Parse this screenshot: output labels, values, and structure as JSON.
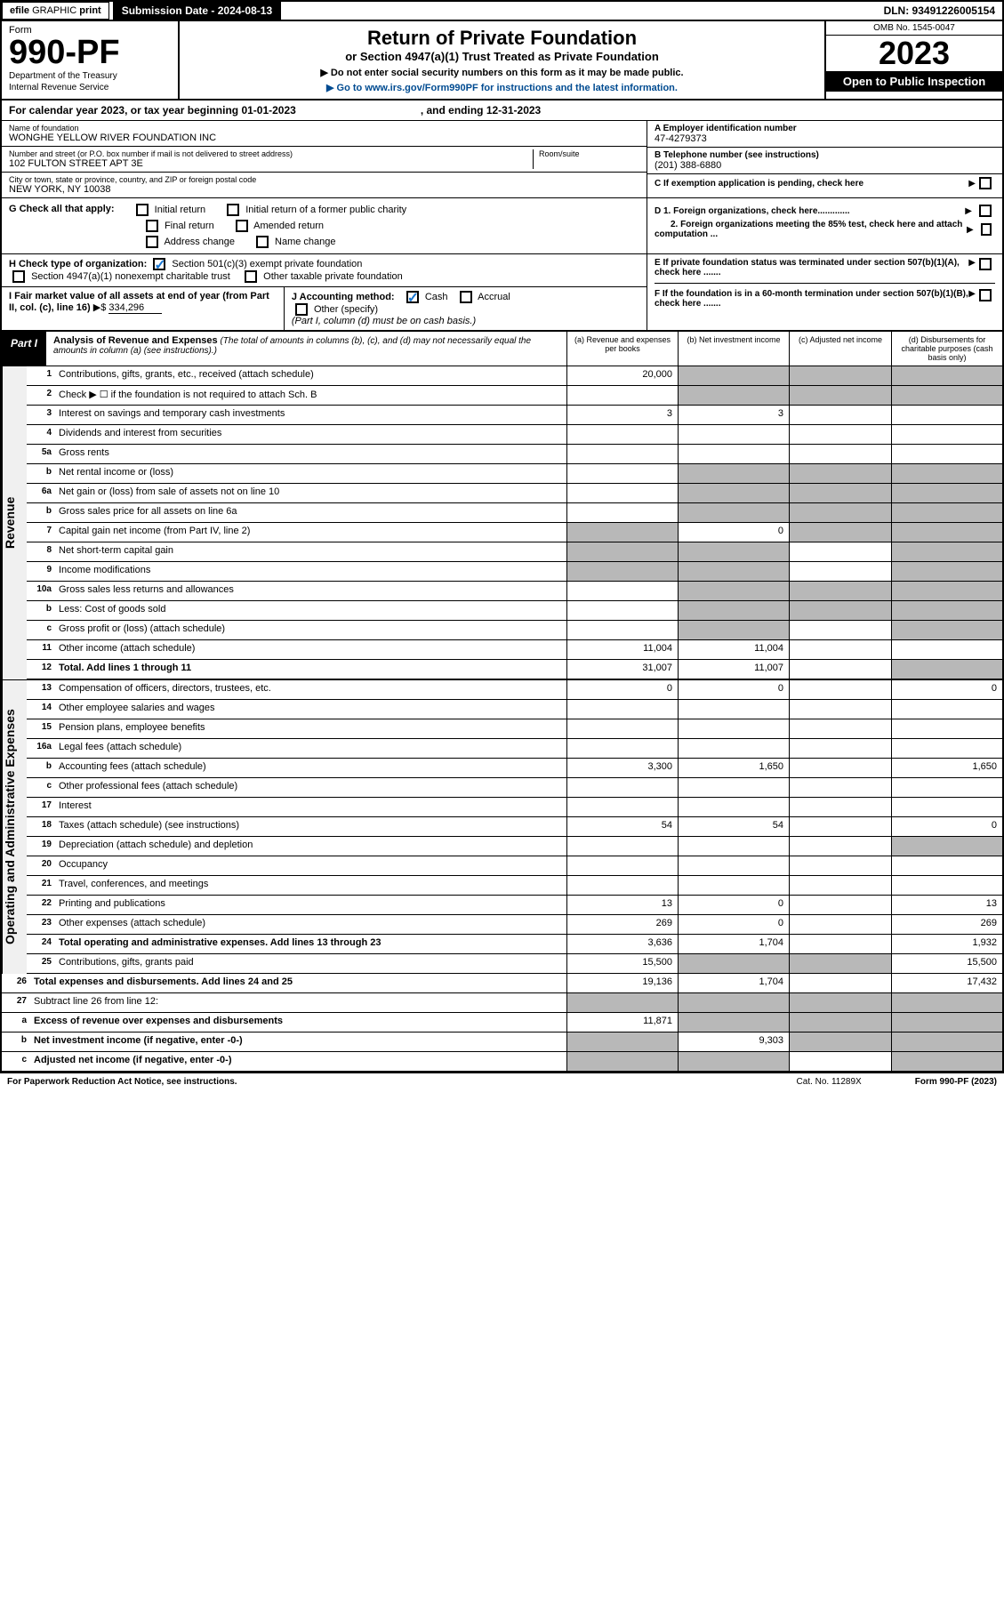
{
  "topbar": {
    "efile": "efile",
    "graphic": "GRAPHIC",
    "print": "print",
    "submission": "Submission Date - 2024-08-13",
    "dln": "DLN: 93491226005154"
  },
  "header": {
    "form": "Form",
    "formNum": "990-PF",
    "dept": "Department of the Treasury",
    "irs": "Internal Revenue Service",
    "title": "Return of Private Foundation",
    "subtitle": "or Section 4947(a)(1) Trust Treated as Private Foundation",
    "instr1": "▶ Do not enter social security numbers on this form as it may be made public.",
    "instr2": "▶ Go to www.irs.gov/Form990PF for instructions and the latest information.",
    "omb": "OMB No. 1545-0047",
    "year": "2023",
    "openPub": "Open to Public Inspection"
  },
  "calYear": {
    "prefix": "For calendar year 2023, or tax year beginning 01-01-2023",
    "suffix": ", and ending 12-31-2023"
  },
  "info": {
    "nameLbl": "Name of foundation",
    "name": "WONGHE YELLOW RIVER FOUNDATION INC",
    "addrLbl": "Number and street (or P.O. box number if mail is not delivered to street address)",
    "addr": "102 FULTON STREET APT 3E",
    "roomLbl": "Room/suite",
    "cityLbl": "City or town, state or province, country, and ZIP or foreign postal code",
    "city": "NEW YORK, NY  10038",
    "einLbl": "A Employer identification number",
    "ein": "47-4279373",
    "phoneLbl": "B Telephone number (see instructions)",
    "phone": "(201) 388-6880",
    "cLbl": "C If exemption application is pending, check here",
    "d1": "D 1. Foreign organizations, check here.............",
    "d2": "2. Foreign organizations meeting the 85% test, check here and attach computation ...",
    "e": "E  If private foundation status was terminated under section 507(b)(1)(A), check here .......",
    "f": "F  If the foundation is in a 60-month termination under section 507(b)(1)(B), check here ......."
  },
  "g": {
    "label": "G Check all that apply:",
    "initial": "Initial return",
    "initialFormer": "Initial return of a former public charity",
    "final": "Final return",
    "amended": "Amended return",
    "addrChange": "Address change",
    "nameChange": "Name change"
  },
  "h": {
    "label": "H Check type of organization:",
    "sec501": "Section 501(c)(3) exempt private foundation",
    "sec4947": "Section 4947(a)(1) nonexempt charitable trust",
    "other": "Other taxable private foundation"
  },
  "i": {
    "label": "I Fair market value of all assets at end of year (from Part II, col. (c), line 16)",
    "value": "334,296"
  },
  "j": {
    "label": "J Accounting method:",
    "cash": "Cash",
    "accrual": "Accrual",
    "other": "Other (specify)",
    "note": "(Part I, column (d) must be on cash basis.)"
  },
  "partI": {
    "label": "Part I",
    "title": "Analysis of Revenue and Expenses",
    "note": "(The total of amounts in columns (b), (c), and (d) may not necessarily equal the amounts in column (a) (see instructions).)",
    "colA": "(a)   Revenue and expenses per books",
    "colB": "(b)   Net investment income",
    "colC": "(c)   Adjusted net income",
    "colD": "(d)   Disbursements for charitable purposes (cash basis only)"
  },
  "sideLabels": {
    "revenue": "Revenue",
    "expenses": "Operating and Administrative Expenses"
  },
  "rows": [
    {
      "n": "1",
      "d": "Contributions, gifts, grants, etc., received (attach schedule)",
      "a": "20,000",
      "bGray": true,
      "cGray": true,
      "dGray": true
    },
    {
      "n": "2",
      "d": "Check ▶ ☐ if the foundation is not required to attach Sch. B",
      "aGray": false,
      "bGray": true,
      "cGray": true,
      "dGray": true
    },
    {
      "n": "3",
      "d": "Interest on savings and temporary cash investments",
      "a": "3",
      "b": "3"
    },
    {
      "n": "4",
      "d": "Dividends and interest from securities"
    },
    {
      "n": "5a",
      "d": "Gross rents"
    },
    {
      "n": "b",
      "d": "Net rental income or (loss)",
      "bGray": true,
      "cGray": true,
      "dGray": true
    },
    {
      "n": "6a",
      "d": "Net gain or (loss) from sale of assets not on line 10",
      "bGray": true,
      "cGray": true,
      "dGray": true
    },
    {
      "n": "b",
      "d": "Gross sales price for all assets on line 6a",
      "aGray": false,
      "bGray": true,
      "cGray": true,
      "dGray": true
    },
    {
      "n": "7",
      "d": "Capital gain net income (from Part IV, line 2)",
      "aGray": true,
      "b": "0",
      "cGray": true,
      "dGray": true
    },
    {
      "n": "8",
      "d": "Net short-term capital gain",
      "aGray": true,
      "bGray": true,
      "dGray": true
    },
    {
      "n": "9",
      "d": "Income modifications",
      "aGray": true,
      "bGray": true,
      "dGray": true
    },
    {
      "n": "10a",
      "d": "Gross sales less returns and allowances",
      "bGray": true,
      "cGray": true,
      "dGray": true
    },
    {
      "n": "b",
      "d": "Less: Cost of goods sold",
      "bGray": true,
      "cGray": true,
      "dGray": true
    },
    {
      "n": "c",
      "d": "Gross profit or (loss) (attach schedule)",
      "bGray": true,
      "dGray": true
    },
    {
      "n": "11",
      "d": "Other income (attach schedule)",
      "a": "11,004",
      "b": "11,004"
    },
    {
      "n": "12",
      "d": "Total. Add lines 1 through 11",
      "bold": true,
      "a": "31,007",
      "b": "11,007",
      "dGray": true
    },
    {
      "n": "13",
      "d": "Compensation of officers, directors, trustees, etc.",
      "a": "0",
      "b": "0",
      "dVal": "0"
    },
    {
      "n": "14",
      "d": "Other employee salaries and wages"
    },
    {
      "n": "15",
      "d": "Pension plans, employee benefits"
    },
    {
      "n": "16a",
      "d": "Legal fees (attach schedule)"
    },
    {
      "n": "b",
      "d": "Accounting fees (attach schedule)",
      "a": "3,300",
      "b": "1,650",
      "dVal": "1,650"
    },
    {
      "n": "c",
      "d": "Other professional fees (attach schedule)"
    },
    {
      "n": "17",
      "d": "Interest"
    },
    {
      "n": "18",
      "d": "Taxes (attach schedule) (see instructions)",
      "a": "54",
      "b": "54",
      "dVal": "0"
    },
    {
      "n": "19",
      "d": "Depreciation (attach schedule) and depletion",
      "dGray": true
    },
    {
      "n": "20",
      "d": "Occupancy"
    },
    {
      "n": "21",
      "d": "Travel, conferences, and meetings"
    },
    {
      "n": "22",
      "d": "Printing and publications",
      "a": "13",
      "b": "0",
      "dVal": "13"
    },
    {
      "n": "23",
      "d": "Other expenses (attach schedule)",
      "a": "269",
      "b": "0",
      "dVal": "269"
    },
    {
      "n": "24",
      "d": "Total operating and administrative expenses. Add lines 13 through 23",
      "bold": true,
      "a": "3,636",
      "b": "1,704",
      "dVal": "1,932"
    },
    {
      "n": "25",
      "d": "Contributions, gifts, grants paid",
      "a": "15,500",
      "bGray": true,
      "cGray": true,
      "dVal": "15,500"
    },
    {
      "n": "26",
      "d": "Total expenses and disbursements. Add lines 24 and 25",
      "bold": true,
      "a": "19,136",
      "b": "1,704",
      "dVal": "17,432"
    },
    {
      "n": "27",
      "d": "Subtract line 26 from line 12:",
      "aGray": true,
      "bGray": true,
      "cGray": true,
      "dGray": true
    },
    {
      "n": "a",
      "d": "Excess of revenue over expenses and disbursements",
      "bold": true,
      "a": "11,871",
      "bGray": true,
      "cGray": true,
      "dGray": true
    },
    {
      "n": "b",
      "d": "Net investment income (if negative, enter -0-)",
      "bold": true,
      "aGray": true,
      "b": "9,303",
      "cGray": true,
      "dGray": true
    },
    {
      "n": "c",
      "d": "Adjusted net income (if negative, enter -0-)",
      "bold": true,
      "aGray": true,
      "bGray": true,
      "dGray": true
    }
  ],
  "footer": {
    "pra": "For Paperwork Reduction Act Notice, see instructions.",
    "cat": "Cat. No. 11289X",
    "form": "Form 990-PF (2023)"
  }
}
